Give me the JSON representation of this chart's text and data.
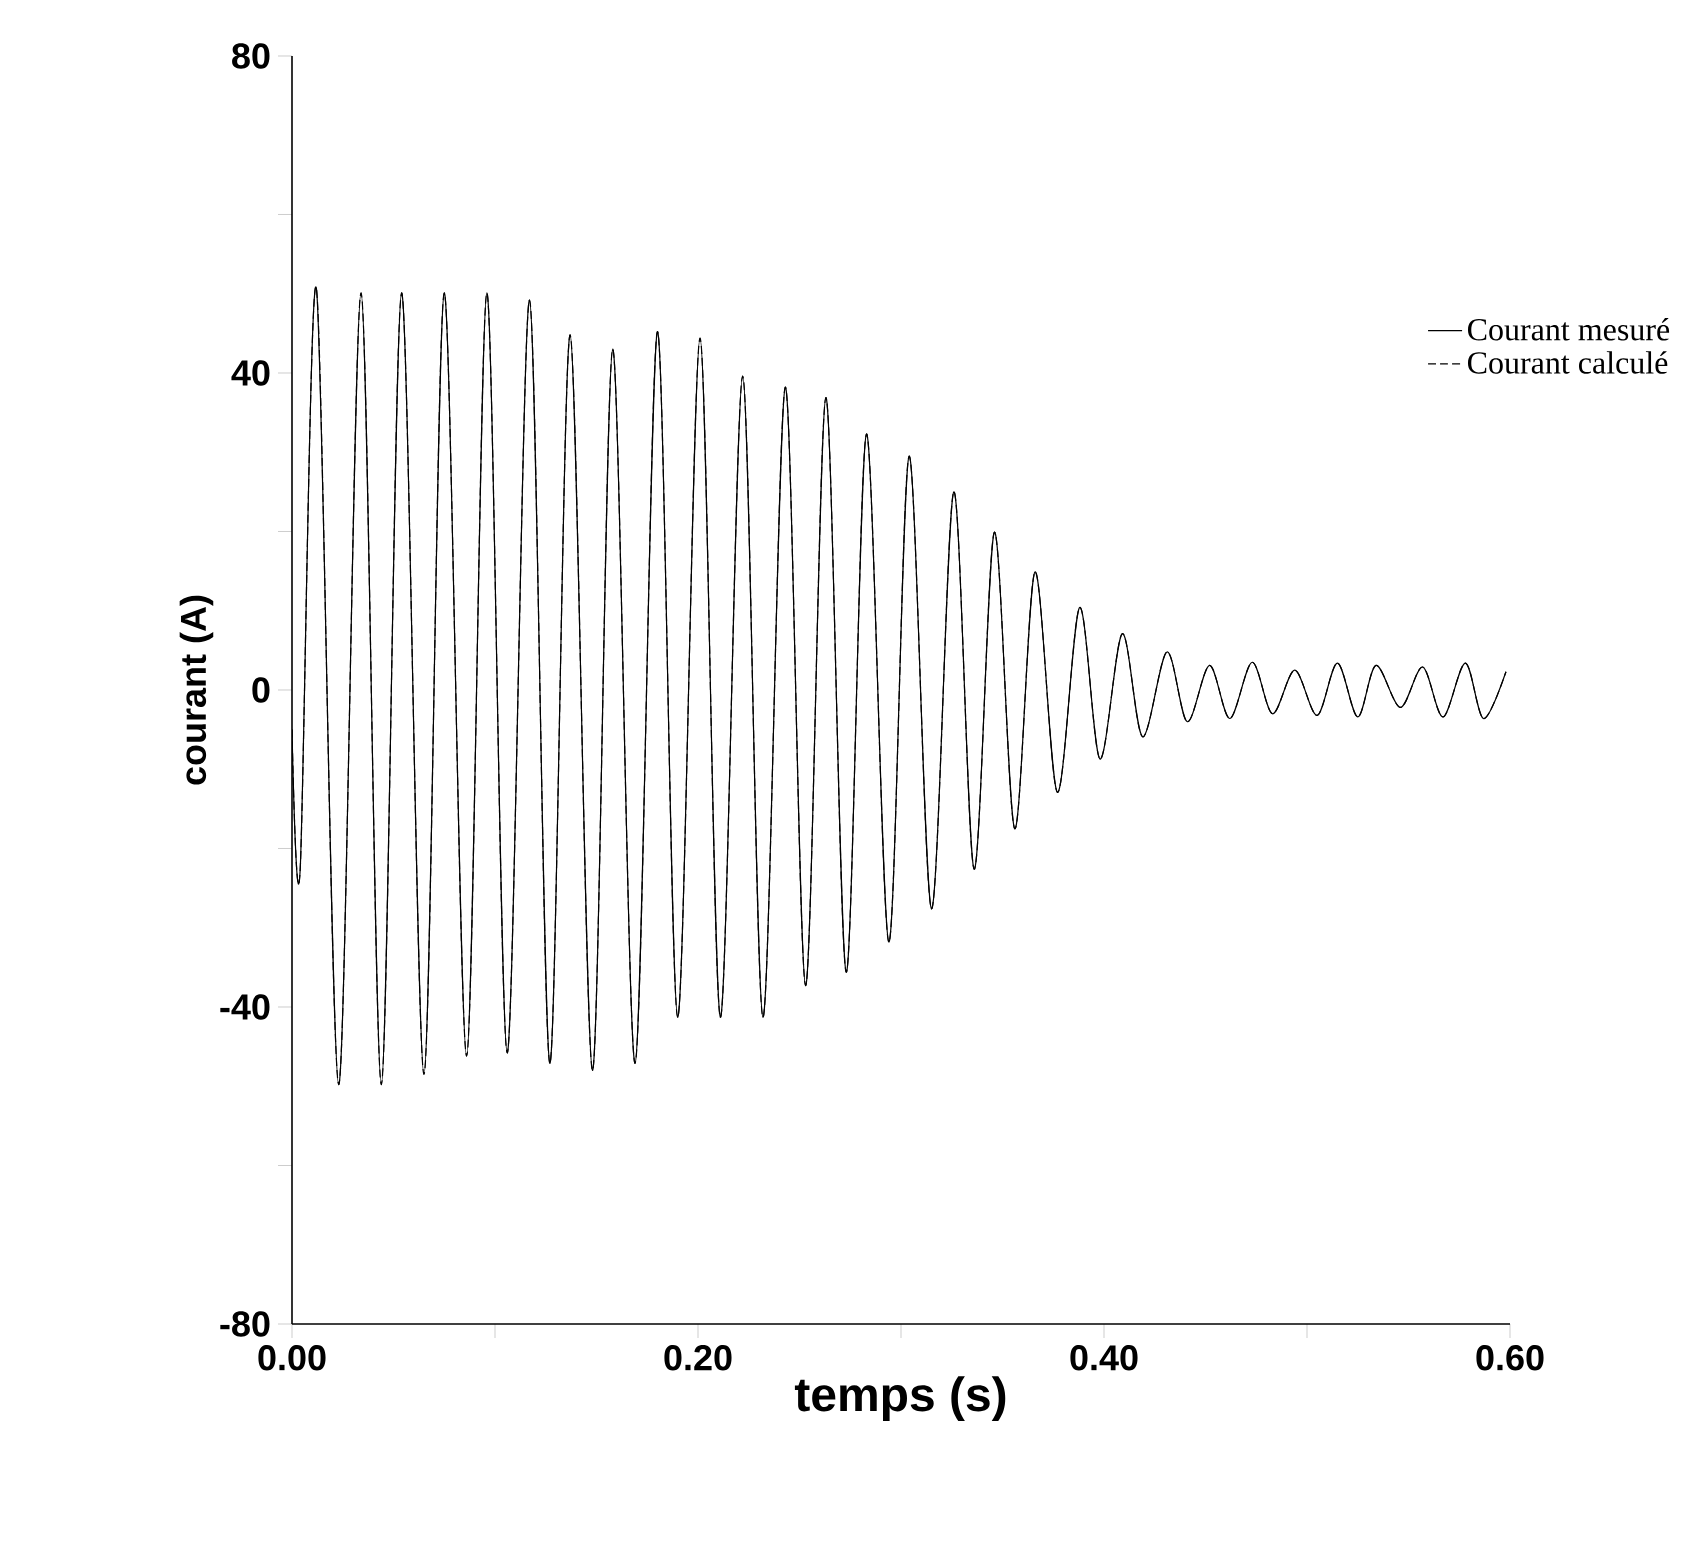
{
  "chart_data": {
    "type": "line",
    "xlabel": "temps (s)",
    "ylabel": "courant (A)",
    "xlim": [
      0,
      0.6
    ],
    "ylim": [
      -80,
      80
    ],
    "xticks": [
      {
        "value": 0,
        "label": "0.00"
      },
      {
        "value": 0.1,
        "label": null
      },
      {
        "value": 0.2,
        "label": "0.20"
      },
      {
        "value": 0.3,
        "label": null
      },
      {
        "value": 0.4,
        "label": "0.40"
      },
      {
        "value": 0.5,
        "label": null
      },
      {
        "value": 0.6,
        "label": "0.60"
      }
    ],
    "yticks": [
      -80,
      {
        "value": -60,
        "label": null
      },
      -40,
      {
        "value": -20,
        "label": null
      },
      0,
      {
        "value": 20,
        "label": null
      },
      40,
      {
        "value": 60,
        "label": null
      },
      80
    ],
    "grid": false,
    "legend": "right",
    "marker": "none",
    "x": [
      0,
      0.004,
      0.012,
      0.023,
      0.034,
      0.044,
      0.054,
      0.065,
      0.075,
      0.086,
      0.096,
      0.106,
      0.117,
      0.127,
      0.137,
      0.148,
      0.158,
      0.169,
      0.18,
      0.19,
      0.201,
      0.211,
      0.222,
      0.232,
      0.243,
      0.253,
      0.263,
      0.273,
      0.283,
      0.294,
      0.304,
      0.315,
      0.326,
      0.336,
      0.346,
      0.356,
      0.366,
      0.377,
      0.388,
      0.398,
      0.409,
      0.419,
      0.431,
      0.441,
      0.452,
      0.462,
      0.473,
      0.483,
      0.494,
      0.505,
      0.515,
      0.525,
      0.534,
      0.546,
      0.557,
      0.567,
      0.578,
      0.587,
      0.598
    ],
    "series": [
      {
        "name": "Courant mesuré",
        "color": "#000000",
        "line_style": "solid",
        "values": [
          -5,
          -22.8,
          50.7,
          -49.8,
          50.1,
          -49.8,
          50.1,
          -48.5,
          50.1,
          -46.2,
          50.1,
          -45.8,
          49.2,
          -47.1,
          44.8,
          -48.0,
          43.0,
          -47.1,
          45.2,
          -41.3,
          44.4,
          -41.3,
          39.6,
          -41.3,
          38.2,
          -37.3,
          36.9,
          -35.6,
          32.3,
          -31.8,
          29.5,
          -27.6,
          25.0,
          -22.6,
          19.9,
          -17.5,
          14.9,
          -12.9,
          10.4,
          -8.7,
          7.1,
          -5.9,
          4.8,
          -4.0,
          3.1,
          -3.6,
          3.5,
          -3.0,
          2.5,
          -3.2,
          3.4,
          -3.4,
          3.1,
          -2.2,
          2.9,
          -3.4,
          3.4,
          -3.6,
          2.3
        ]
      },
      {
        "name": "Courant calculé",
        "color": "#000000",
        "line_style": "dashed",
        "values": [
          -5,
          -22.8,
          50.7,
          -49.8,
          50.1,
          -49.8,
          50.1,
          -48.5,
          50.1,
          -46.2,
          50.1,
          -45.8,
          49.2,
          -47.1,
          44.8,
          -48.0,
          43.0,
          -47.1,
          45.2,
          -41.3,
          44.4,
          -41.3,
          39.6,
          -41.3,
          38.2,
          -37.3,
          36.9,
          -35.6,
          32.3,
          -31.8,
          29.5,
          -27.6,
          25.0,
          -22.6,
          19.9,
          -17.5,
          14.9,
          -12.9,
          10.4,
          -8.7,
          7.1,
          -5.9,
          4.8,
          -4.0,
          3.1,
          -3.6,
          3.5,
          -3.0,
          2.5,
          -3.2,
          3.4,
          -3.4,
          3.1,
          -2.2,
          2.9,
          -3.4,
          3.4,
          -3.6,
          2.3
        ]
      }
    ]
  }
}
